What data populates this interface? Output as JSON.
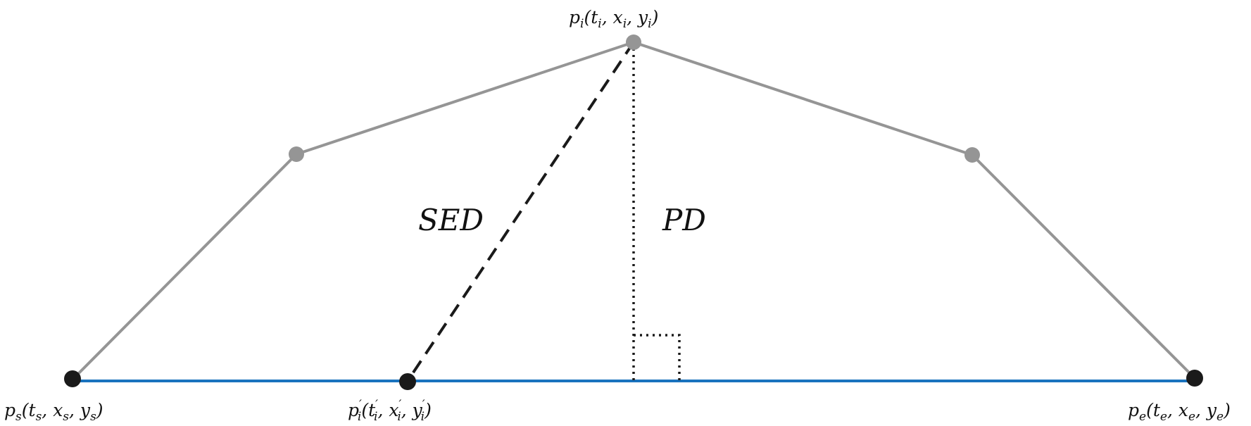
{
  "diagram": {
    "description_labels": {
      "sed": "SED",
      "pd": "PD"
    },
    "points": {
      "start": {
        "label_html": "p<tspan font-size=\"17\" dy=\"6\">s</tspan><tspan dy=\"-6\">(t</tspan><tspan font-size=\"17\" dy=\"6\">s</tspan><tspan dy=\"-6\">, x</tspan><tspan font-size=\"17\" dy=\"6\">s</tspan><tspan dy=\"-6\">, y</tspan><tspan font-size=\"17\" dy=\"6\">s</tspan><tspan dy=\"-6\">)</tspan>",
        "label_text": "ps(ts, xs, ys)"
      },
      "intermediate": {
        "label_text": "pi(ti, xi, yi)"
      },
      "projected": {
        "label_text": "p'i(t'i, x'i, y'i)"
      },
      "end": {
        "label_text": "pe(te, xe, ye)"
      }
    },
    "colors": {
      "trajectory": "#959595",
      "segment": "#1a73be",
      "endpoint": "#1a1a1a",
      "helper_line": "#1a1a1a"
    }
  }
}
